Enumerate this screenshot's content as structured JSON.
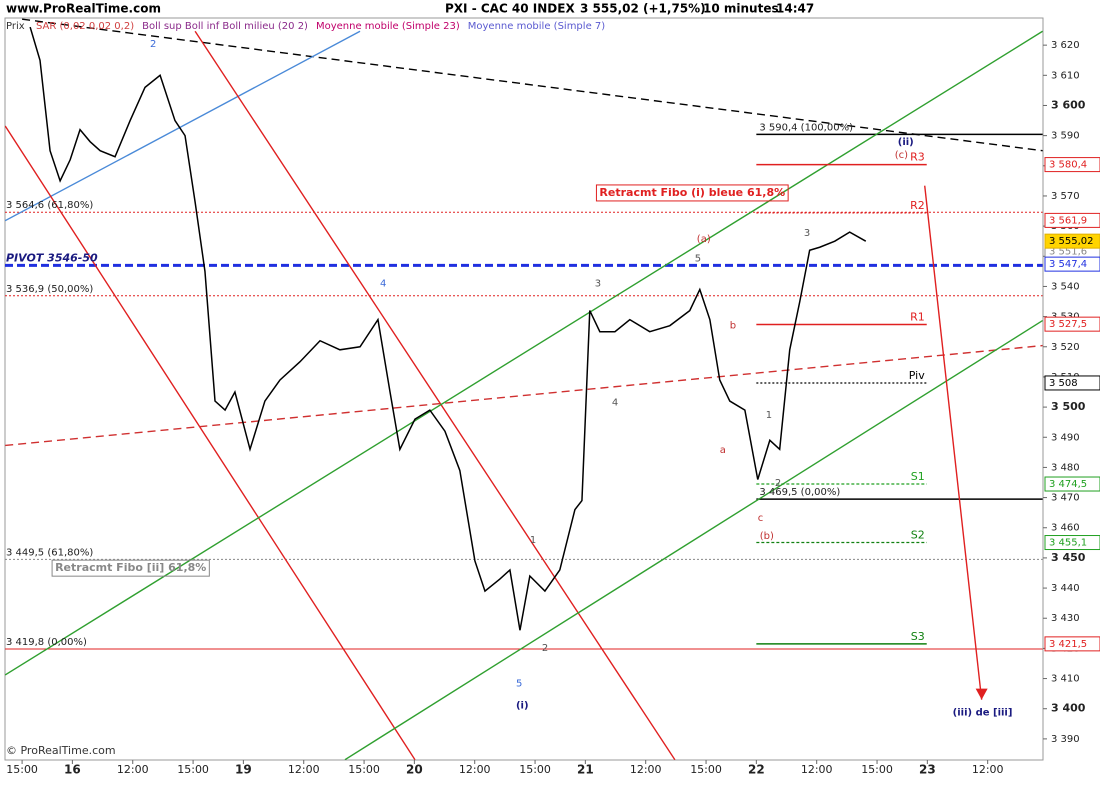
{
  "chart_data": {
    "type": "line",
    "site": "www.ProRealTime.com",
    "title": "PXI - CAC 40 INDEX",
    "price_text": "3 555,02 (+1,75%)",
    "period": "10 minutes",
    "time": "14:47",
    "indicators": [
      "SAR (0,02 0,02 0,2)",
      "Boll sup Boll inf Boll milieu (20 2)",
      "Moyenne mobile (Simple 23)",
      "Moyenne mobile (Simple 7)"
    ],
    "indicator_colors": [
      "#d04040",
      "#8a2a8a",
      "#c0006a",
      "#5a5ad0"
    ],
    "footer": "© ProRealTime.com",
    "xlim": [
      -0.85,
      50.75
    ],
    "ylim": [
      3383,
      3629
    ],
    "xticks": [
      {
        "value": 0,
        "label": "15:00"
      },
      {
        "value": 2.5,
        "label": "16"
      },
      {
        "value": 5.5,
        "label": "12:00"
      },
      {
        "value": 8.5,
        "label": "15:00"
      },
      {
        "value": 11,
        "label": "19"
      },
      {
        "value": 14,
        "label": "12:00"
      },
      {
        "value": 17,
        "label": "15:00"
      },
      {
        "value": 19.5,
        "label": "20"
      },
      {
        "value": 22.5,
        "label": "12:00"
      },
      {
        "value": 25.5,
        "label": "15:00"
      },
      {
        "value": 28,
        "label": "21"
      },
      {
        "value": 31,
        "label": "12:00"
      },
      {
        "value": 34,
        "label": "15:00"
      },
      {
        "value": 36.5,
        "label": "22"
      },
      {
        "value": 39.5,
        "label": "12:00"
      },
      {
        "value": 42.5,
        "label": "15:00"
      },
      {
        "value": 45,
        "label": "23"
      },
      {
        "value": 48,
        "label": "12:00"
      }
    ],
    "yticks": [
      {
        "value": 3390,
        "label": "3 390"
      },
      {
        "value": 3400,
        "label": "3 400"
      },
      {
        "value": 3410,
        "label": "3 410"
      },
      {
        "value": 3420,
        "label": "3 420"
      },
      {
        "value": 3430,
        "label": "3 430"
      },
      {
        "value": 3440,
        "label": "3 440"
      },
      {
        "value": 3450,
        "label": "3 450"
      },
      {
        "value": 3460,
        "label": "3 460"
      },
      {
        "value": 3470,
        "label": "3 470"
      },
      {
        "value": 3480,
        "label": "3 480"
      },
      {
        "value": 3490,
        "label": "3 490"
      },
      {
        "value": 3500,
        "label": "3 500"
      },
      {
        "value": 3510,
        "label": "3 510"
      },
      {
        "value": 3520,
        "label": "3 520"
      },
      {
        "value": 3530,
        "label": "3 530"
      },
      {
        "value": 3540,
        "label": "3 540"
      },
      {
        "value": 3550,
        "label": "3 550"
      },
      {
        "value": 3560,
        "label": "3 560"
      },
      {
        "value": 3570,
        "label": "3 570"
      },
      {
        "value": 3580,
        "label": "3 580"
      },
      {
        "value": 3590,
        "label": "3 590"
      },
      {
        "value": 3600,
        "label": "3 600"
      },
      {
        "value": 3610,
        "label": "3 610"
      },
      {
        "value": 3620,
        "label": "3 620"
      }
    ],
    "x": [
      0.4,
      0.89,
      1.39,
      1.89,
      2.39,
      2.88,
      3.38,
      3.88,
      4.62,
      5.37,
      6.11,
      6.86,
      7.6,
      8.1,
      8.6,
      9.09,
      9.59,
      10.09,
      10.58,
      11.33,
      12.07,
      12.82,
      13.81,
      14.81,
      15.8,
      16.8,
      17.69,
      18.29,
      18.78,
      19.53,
      20.27,
      21.02,
      21.76,
      22.51,
      23.01,
      23.75,
      24.25,
      24.75,
      25.24,
      25.99,
      26.73,
      27.48,
      27.83,
      28.22,
      28.72,
      29.47,
      30.21,
      31.2,
      32.2,
      33.19,
      33.69,
      34.19,
      34.68,
      35.18,
      35.93,
      36.57,
      37.17,
      37.66,
      38.16,
      38.66,
      39.15,
      39.65,
      40.4,
      41.14,
      41.94
    ],
    "series": [
      {
        "name": "Prix",
        "color": "#000000",
        "values": [
          3626,
          3615,
          3585,
          3575,
          3582,
          3592,
          3588,
          3585,
          3583,
          3595,
          3606,
          3610,
          3595,
          3590,
          3568,
          3545,
          3502,
          3499,
          3505,
          3486,
          3502,
          3509,
          3515,
          3522,
          3519,
          3520,
          3529,
          3505,
          3486,
          3496,
          3499,
          3492,
          3479,
          3449,
          3439,
          3443,
          3446,
          3426,
          3444,
          3439,
          3446,
          3466,
          3469,
          3532,
          3525,
          3525,
          3529,
          3525,
          3527,
          3532,
          3539,
          3529,
          3509,
          3502,
          3499,
          3476,
          3489,
          3486,
          3519,
          3535,
          3552,
          3553,
          3555,
          3558,
          3555
        ]
      }
    ],
    "trend_lines": [
      {
        "x": [
          0,
          50.73
        ],
        "y": [
          3628.6,
          3585
        ],
        "color": "#000000",
        "dash": "8 5"
      },
      {
        "x": [
          -0.84,
          16.8
        ],
        "y": [
          3561.8,
          3624.6
        ],
        "color": "#4a8ad8",
        "dash": "none"
      },
      {
        "x": [
          -0.84,
          19.53
        ],
        "y": [
          3593.2,
          3383.1
        ],
        "color": "#e02020",
        "dash": "none"
      },
      {
        "x": [
          8.6,
          32.45
        ],
        "y": [
          3624.6,
          3383.1
        ],
        "color": "#e02020",
        "dash": "none"
      },
      {
        "x": [
          -0.84,
          50.73
        ],
        "y": [
          3487.3,
          3520.4
        ],
        "color": "#d03030",
        "dash": "8 5"
      },
      {
        "x": [
          -0.84,
          50.73
        ],
        "y": [
          3411.2,
          3624.6
        ],
        "color": "#30a030",
        "dash": "none"
      },
      {
        "x": [
          16.05,
          50.73
        ],
        "y": [
          3383.1,
          3528.7
        ],
        "color": "#30a030",
        "dash": "none"
      },
      {
        "x": [
          44.87,
          47.7
        ],
        "y": [
          3573.4,
          3403
        ],
        "color": "#e02020",
        "dash": "none"
      }
    ],
    "levels": [
      {
        "name": "R3",
        "value": 3580.4,
        "x": [
          36.5,
          44.97
        ],
        "color": "#e02020",
        "dash": "none"
      },
      {
        "name": "R2",
        "value": 3564.4,
        "x": [
          36.5,
          44.97
        ],
        "color": "#e02020",
        "dash": "2 2"
      },
      {
        "name": "R1",
        "value": 3527.4,
        "x": [
          36.5,
          44.97
        ],
        "color": "#e02020",
        "dash": "none"
      },
      {
        "name": "Piv",
        "value": 3508,
        "x": [
          36.5,
          44.97
        ],
        "color": "#000000",
        "dash": "2 2"
      },
      {
        "name": "S1",
        "value": 3474.5,
        "x": [
          36.5,
          44.97
        ],
        "color": "#20a020",
        "dash": "3 2"
      },
      {
        "name": "S2",
        "value": 3455.1,
        "x": [
          36.5,
          44.97
        ],
        "color": "#108010",
        "dash": "3 2"
      },
      {
        "name": "S3",
        "value": 3421.5,
        "x": [
          36.5,
          44.97
        ],
        "color": "#108010",
        "dash": "none"
      }
    ],
    "fibo_lines": [
      {
        "value": 3590.4,
        "label": "3 590,4 (100,00%)",
        "x": [
          36.5,
          50.73
        ],
        "color": "#000000",
        "dash": "none",
        "width": 1.5
      },
      {
        "value": 3469.5,
        "label": "3 469,5 (0,00%)",
        "x": [
          36.5,
          50.73
        ],
        "color": "#000000",
        "dash": "none",
        "width": 1.5
      },
      {
        "value": 3564.6,
        "label": "3 564,6 (61,80%)",
        "x": [
          -0.85,
          50.73
        ],
        "color": "#e02020",
        "dash": "2 2",
        "width": 1
      },
      {
        "value": 3536.9,
        "label": "3 536,9 (50,00%)",
        "x": [
          -0.85,
          50.73
        ],
        "color": "#e02020",
        "dash": "2 2",
        "width": 1
      },
      {
        "value": 3547,
        "label": "PIVOT 3546-50",
        "x": [
          -0.85,
          50.73
        ],
        "color": "#2030e0",
        "dash": "8 4",
        "width": 3
      },
      {
        "value": 3449.5,
        "label": "3 449,5 (61,80%)",
        "x": [
          -0.85,
          50.73
        ],
        "color": "#888888",
        "dash": "2 2",
        "width": 1
      },
      {
        "value": 3419.8,
        "label": "3 419,8 (0,00%)",
        "x": [
          -0.85,
          50.73
        ],
        "color": "#e02020",
        "dash": "none",
        "width": 1
      }
    ],
    "axis_boxes": [
      {
        "value": 3580.4,
        "label": "3 580,4",
        "color": "#e02020"
      },
      {
        "value": 3561.9,
        "label": "3 561,9",
        "color": "#e02020"
      },
      {
        "value": 3551.6,
        "label": "3 551,6",
        "color": "#888888"
      },
      {
        "value": 3547.4,
        "label": "3 547,4",
        "color": "#2030e0"
      },
      {
        "value": 3555.02,
        "label": "3 555,02",
        "color": "#e0b000"
      },
      {
        "value": 3527.5,
        "label": "3 527,5",
        "color": "#e02020"
      },
      {
        "value": 3508,
        "label": "3 508",
        "color": "#000000"
      },
      {
        "value": 3474.5,
        "label": "3 474,5",
        "color": "#20a020"
      },
      {
        "value": 3455.1,
        "label": "3 455,1",
        "color": "#20a020"
      },
      {
        "value": 3421.5,
        "label": "3 421,5",
        "color": "#e02020"
      }
    ],
    "annotations": [
      {
        "text": "Retracmt Fibo (i) bleue 61,8%",
        "x": 28.7,
        "y": 3571,
        "color": "#e02020",
        "box": true,
        "bold": true
      },
      {
        "text": "Retracmt Fibo [ii] 61,8%",
        "x": 1.64,
        "y": 3446.6,
        "color": "#888888",
        "box": true,
        "bold": true
      },
      {
        "text": "(iii) de [iii]",
        "x": 46.26,
        "y": 3398.7,
        "color": "#1a1a80",
        "box": false,
        "bold": true
      },
      {
        "text": "(i)",
        "x": 24.55,
        "y": 3401,
        "color": "#1a1a80",
        "box": false,
        "bold": true
      },
      {
        "text": "5",
        "x": 24.55,
        "y": 3408.3,
        "color": "#3a6ad8",
        "box": false,
        "bold": false
      },
      {
        "text": "2",
        "x": 6.36,
        "y": 3620.3,
        "color": "#3a6ad8",
        "box": false,
        "bold": false
      },
      {
        "text": "4",
        "x": 17.79,
        "y": 3541,
        "color": "#3a6ad8",
        "box": false,
        "bold": false
      },
      {
        "text": "(a)",
        "x": 33.54,
        "y": 3555.8,
        "color": "#c03030",
        "box": false,
        "bold": false
      },
      {
        "text": "5",
        "x": 33.44,
        "y": 3549.2,
        "color": "#555555",
        "box": false,
        "bold": false
      },
      {
        "text": "3",
        "x": 28.47,
        "y": 3541,
        "color": "#555555",
        "box": false,
        "bold": false
      },
      {
        "text": "4",
        "x": 29.32,
        "y": 3501.6,
        "color": "#555555",
        "box": false,
        "bold": false
      },
      {
        "text": "a",
        "x": 34.68,
        "y": 3485.7,
        "color": "#c03030",
        "box": false,
        "bold": false
      },
      {
        "text": "b",
        "x": 35.18,
        "y": 3527,
        "color": "#c03030",
        "box": false,
        "bold": false
      },
      {
        "text": "c",
        "x": 36.57,
        "y": 3463.2,
        "color": "#c03030",
        "box": false,
        "bold": false
      },
      {
        "text": "(b)",
        "x": 36.67,
        "y": 3457.2,
        "color": "#c03030",
        "box": false,
        "bold": false
      },
      {
        "text": "(c)",
        "x": 43.38,
        "y": 3583.6,
        "color": "#c03030",
        "box": false,
        "bold": false
      },
      {
        "text": "(ii)",
        "x": 43.53,
        "y": 3587.9,
        "color": "#1a1a80",
        "box": false,
        "bold": true
      },
      {
        "text": "3",
        "x": 38.86,
        "y": 3557.8,
        "color": "#555555",
        "box": false,
        "bold": false
      },
      {
        "text": "1",
        "x": 36.97,
        "y": 3497.3,
        "color": "#555555",
        "box": false,
        "bold": false
      },
      {
        "text": "2",
        "x": 37.42,
        "y": 3474.8,
        "color": "#555555",
        "box": false,
        "bold": false
      },
      {
        "text": "1",
        "x": 25.24,
        "y": 3455.9,
        "color": "#555555",
        "box": false,
        "bold": false
      },
      {
        "text": "2",
        "x": 25.84,
        "y": 3420.2,
        "color": "#555555",
        "box": false,
        "bold": false
      }
    ]
  }
}
